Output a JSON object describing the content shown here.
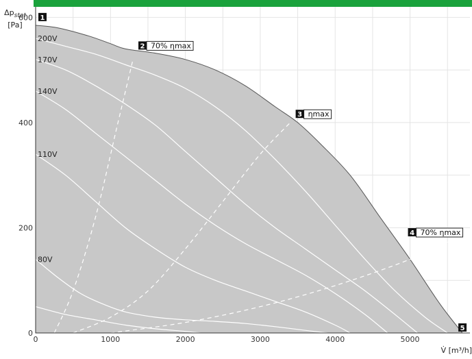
{
  "colors": {
    "topbar": "#1aa23c",
    "envelope": "#c8c8c8",
    "grid": "#e4e4e4",
    "speed_curve": "#ffffff",
    "efficiency_curve": "#ffffff"
  },
  "labels": {
    "y_symbol": "Δp",
    "y_sub": "stat",
    "y_unit": "[Pa]",
    "x_label": "V̇ [m³/h]"
  },
  "chart_data": {
    "type": "line",
    "xlim": [
      0,
      5800
    ],
    "ylim": [
      0,
      620
    ],
    "x_ticks": [
      0,
      1000,
      2000,
      3000,
      4000,
      5000
    ],
    "y_ticks": [
      0,
      200,
      400,
      600
    ],
    "grid": true,
    "envelope": {
      "x": [
        0,
        300,
        700,
        1000,
        1200,
        1600,
        2000,
        2400,
        2800,
        3200,
        3500,
        3800,
        4200,
        4600,
        5000,
        5400,
        5700
      ],
      "y": [
        585,
        580,
        565,
        550,
        540,
        532,
        520,
        500,
        470,
        430,
        400,
        360,
        300,
        220,
        140,
        55,
        0
      ]
    },
    "speed_curves": [
      {
        "name": "200V",
        "x": [
          0,
          400,
          800,
          1200,
          1600,
          2000,
          2400,
          2800,
          3200,
          3600,
          4000,
          4400,
          4800,
          5200,
          5500
        ],
        "y": [
          560,
          545,
          530,
          510,
          490,
          465,
          430,
          385,
          330,
          270,
          205,
          140,
          80,
          30,
          0
        ]
      },
      {
        "name": "170V",
        "x": [
          0,
          400,
          800,
          1200,
          1600,
          2000,
          2400,
          2800,
          3200,
          3600,
          4000,
          4400,
          4800,
          5100
        ],
        "y": [
          520,
          500,
          470,
          435,
          395,
          345,
          295,
          245,
          200,
          160,
          120,
          80,
          35,
          0
        ]
      },
      {
        "name": "140V",
        "x": [
          0,
          400,
          800,
          1200,
          1600,
          2000,
          2400,
          2800,
          3200,
          3600,
          4000,
          4400,
          4700
        ],
        "y": [
          460,
          425,
          380,
          335,
          290,
          245,
          205,
          170,
          140,
          110,
          75,
          35,
          0
        ]
      },
      {
        "name": "110V",
        "x": [
          0,
          400,
          800,
          1200,
          1600,
          2000,
          2400,
          2800,
          3200,
          3600,
          4000,
          4200
        ],
        "y": [
          340,
          300,
          250,
          200,
          160,
          125,
          100,
          80,
          60,
          40,
          15,
          0
        ]
      },
      {
        "name": "80V",
        "x": [
          0,
          300,
          600,
          900,
          1200,
          1600,
          2000,
          2400,
          2800,
          3200,
          3600,
          3900
        ],
        "y": [
          140,
          105,
          75,
          55,
          40,
          30,
          25,
          22,
          18,
          12,
          5,
          0
        ]
      },
      {
        "name": "",
        "x": [
          0,
          400,
          800,
          1200,
          1600,
          2000,
          2200
        ],
        "y": [
          50,
          35,
          25,
          15,
          8,
          3,
          0
        ]
      }
    ],
    "efficiency_curves": [
      {
        "name": "70% ηmax",
        "x": [
          250,
          500,
          800,
          1100,
          1300
        ],
        "y": [
          0,
          80,
          220,
          400,
          520
        ]
      },
      {
        "name": "ηmax",
        "x": [
          500,
          1000,
          1500,
          2000,
          2500,
          3000,
          3400
        ],
        "y": [
          0,
          30,
          80,
          160,
          250,
          340,
          400
        ]
      },
      {
        "name": "70% ηmax",
        "x": [
          1000,
          2000,
          3000,
          4000,
          5000,
          5600
        ],
        "y": [
          0,
          20,
          50,
          90,
          140,
          180
        ]
      }
    ],
    "points": [
      {
        "id": "1",
        "x": 0,
        "y": 585,
        "label": ""
      },
      {
        "id": "2",
        "x": 1400,
        "y": 540,
        "label": "70% ηmax"
      },
      {
        "id": "3",
        "x": 3500,
        "y": 410,
        "label": "ηmax"
      },
      {
        "id": "4",
        "x": 5000,
        "y": 185,
        "label": "70% ηmax"
      },
      {
        "id": "5",
        "x": 5700,
        "y": 0,
        "label": ""
      }
    ]
  }
}
